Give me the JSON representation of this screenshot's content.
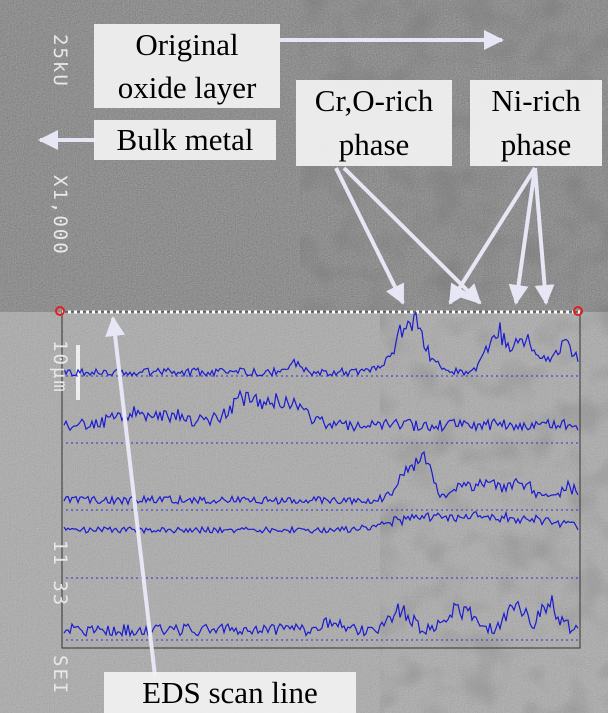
{
  "annotations": {
    "original_oxide_layer": [
      "Original",
      "oxide layer"
    ],
    "bulk_metal": "Bulk metal",
    "cr_o_rich_phase": [
      "Cr,O-rich",
      "phase"
    ],
    "ni_rich_phase": [
      "Ni-rich",
      "phase"
    ],
    "eds_scan_line": "EDS scan line"
  },
  "sem_info": {
    "voltage": "25kU",
    "magnification": "X1,000",
    "scale": "10µm",
    "code": "11 33",
    "mode": "SEI"
  }
}
